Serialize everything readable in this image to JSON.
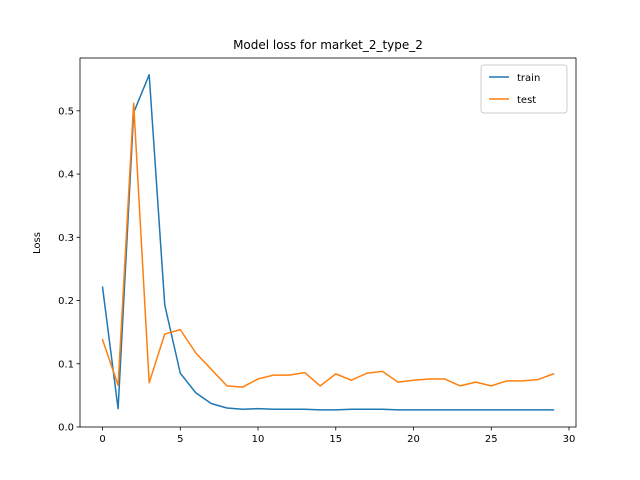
{
  "chart_data": {
    "type": "line",
    "title": "Model loss for market_2_type_2",
    "xlabel": "",
    "ylabel": "Loss",
    "xlim": [
      -1.45,
      30.45
    ],
    "ylim": [
      0,
      0.5835
    ],
    "xticks": [
      0,
      5,
      10,
      15,
      20,
      25,
      30
    ],
    "yticks": [
      0.0,
      0.1,
      0.2,
      0.3,
      0.4,
      0.5
    ],
    "ytick_labels": [
      "0.0",
      "0.1",
      "0.2",
      "0.3",
      "0.4",
      "0.5"
    ],
    "grid": false,
    "legend_position": "top-right",
    "x": [
      0,
      1,
      2,
      3,
      4,
      5,
      6,
      7,
      8,
      9,
      10,
      11,
      12,
      13,
      14,
      15,
      16,
      17,
      18,
      19,
      20,
      21,
      22,
      23,
      24,
      25,
      26,
      27,
      28,
      29
    ],
    "series": [
      {
        "name": "train",
        "color": "#1f77b4",
        "values": [
          0.221,
          0.029,
          0.497,
          0.557,
          0.193,
          0.085,
          0.054,
          0.037,
          0.03,
          0.028,
          0.029,
          0.028,
          0.028,
          0.028,
          0.027,
          0.027,
          0.028,
          0.028,
          0.028,
          0.027,
          0.027,
          0.027,
          0.027,
          0.027,
          0.027,
          0.027,
          0.027,
          0.027,
          0.027,
          0.027
        ]
      },
      {
        "name": "test",
        "color": "#ff7f0e",
        "values": [
          0.138,
          0.066,
          0.512,
          0.07,
          0.147,
          0.154,
          0.117,
          0.091,
          0.065,
          0.063,
          0.076,
          0.082,
          0.082,
          0.086,
          0.065,
          0.084,
          0.074,
          0.085,
          0.088,
          0.071,
          0.074,
          0.076,
          0.076,
          0.065,
          0.071,
          0.065,
          0.073,
          0.073,
          0.075,
          0.084
        ]
      }
    ]
  }
}
